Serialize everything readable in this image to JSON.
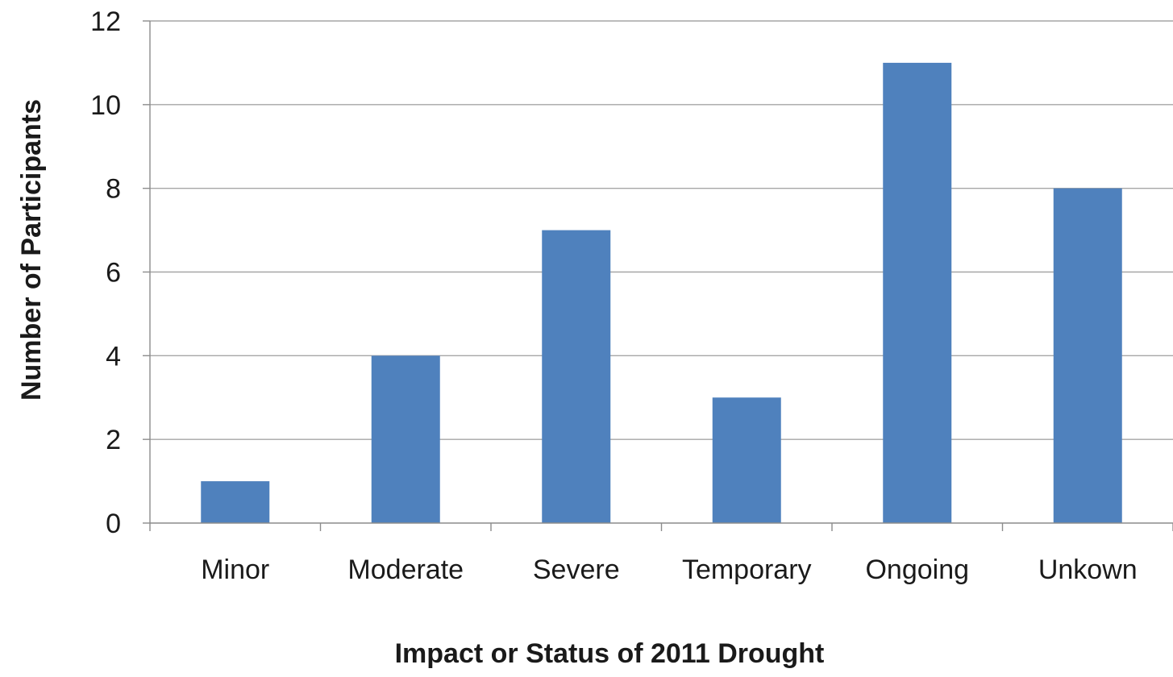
{
  "chart_data": {
    "type": "bar",
    "categories": [
      "Minor",
      "Moderate",
      "Severe",
      "Temporary",
      "Ongoing",
      "Unkown"
    ],
    "values": [
      1,
      4,
      7,
      3,
      11,
      8
    ],
    "xlabel": "Impact or Status of 2011 Drought",
    "ylabel": "Number of Participants",
    "ylim": [
      0,
      12
    ],
    "yticks": [
      0,
      2,
      4,
      6,
      8,
      10,
      12
    ],
    "grid": true,
    "legend": "none",
    "colors": {
      "bar": "#4f81bd",
      "grid": "#a6a6a6",
      "axis": "#8c8c8c"
    }
  }
}
